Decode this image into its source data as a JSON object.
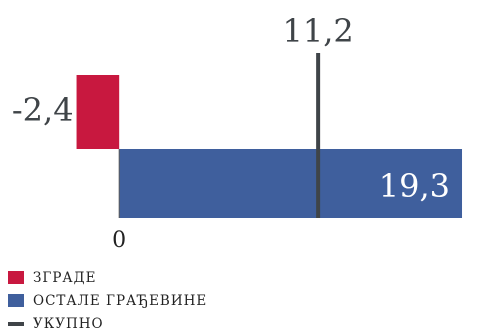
{
  "chart_data": {
    "type": "bar",
    "orientation": "horizontal",
    "xlim": [
      -2.6,
      20.2
    ],
    "zero_tick_label": "0",
    "bars": [
      {
        "name": "ЗГРАДЕ",
        "value": -2.4,
        "label": "-2,4",
        "color": "#c8183f"
      },
      {
        "name": "ОСТАЛЕ ГРАЂЕВИНЕ",
        "value": 19.3,
        "label": "19,3",
        "color": "#3f5f9d"
      }
    ],
    "total": {
      "name": "УКУПНО",
      "value": 11.2,
      "label": "11,2",
      "color": "#3f4448"
    }
  },
  "legend": {
    "placement": "bottom-left",
    "items": [
      {
        "label": "ЗГРАДЕ",
        "color": "#c8183f",
        "kind": "box"
      },
      {
        "label": "ОСТАЛЕ ГРАЂЕВИНЕ",
        "color": "#3f5f9d",
        "kind": "box"
      },
      {
        "label": "УКУПНО",
        "color": "#3f4448",
        "kind": "line"
      }
    ]
  }
}
